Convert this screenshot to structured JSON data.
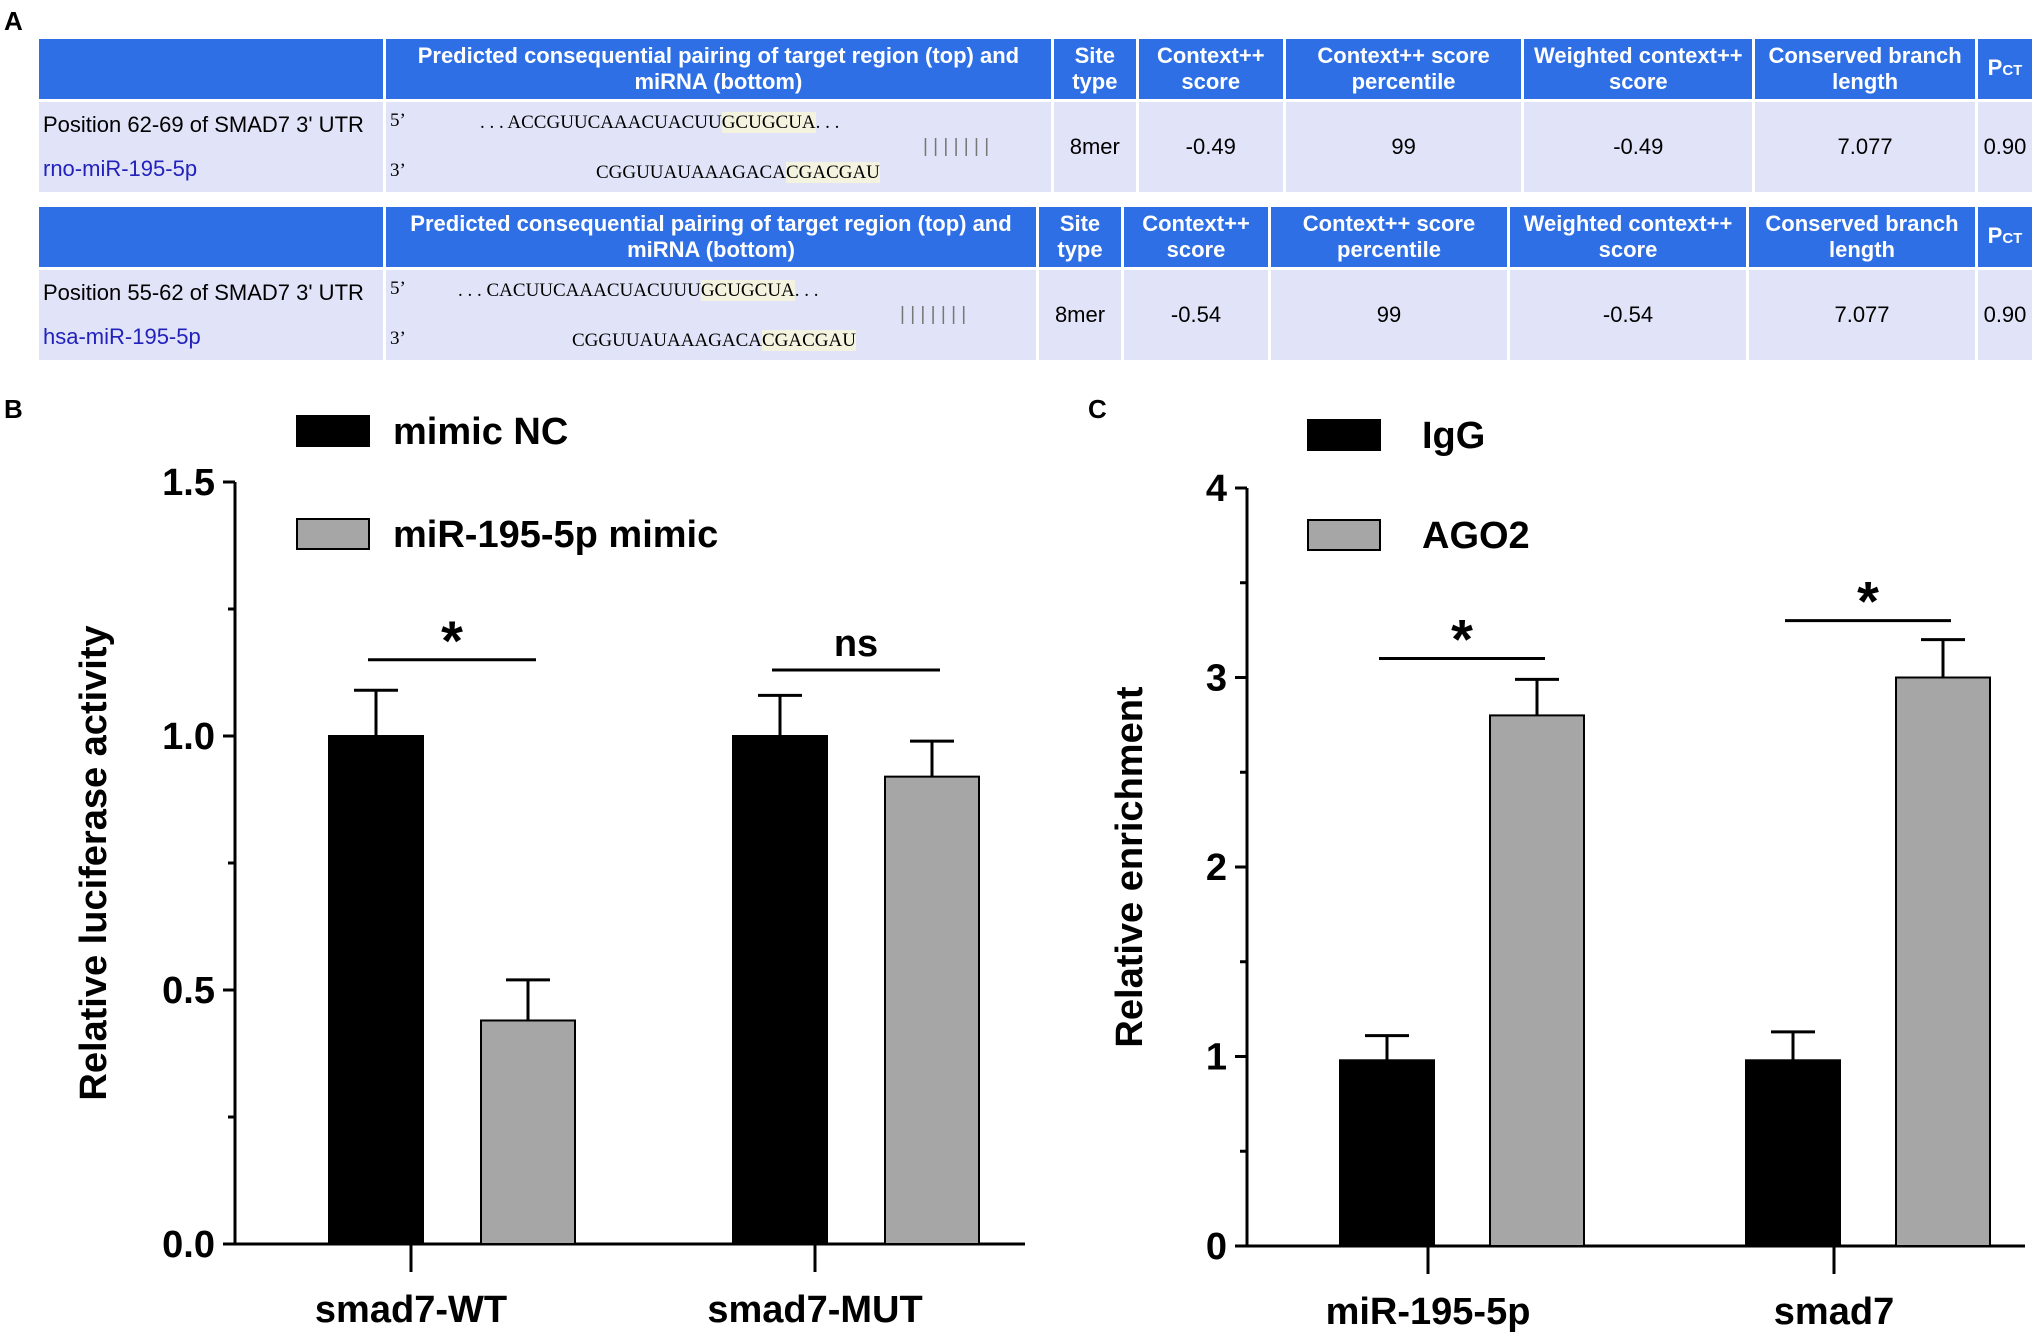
{
  "panels": {
    "a": "A",
    "b": "B",
    "c": "C"
  },
  "table": {
    "rows": [
      {
        "headers": {
          "blank": "",
          "pairing": "Predicted consequential pairing of target region (top) and miRNA (bottom)",
          "site_type": "Site type",
          "context_score": "Context++ score",
          "percentile": "Context++ score percentile",
          "weighted": "Weighted context++ score",
          "branch": "Conserved branch length",
          "pct_main": "P",
          "pct_sub": "CT"
        },
        "position": "Position 62-69 of SMAD7 3' UTR",
        "mirna": "rno-miR-195-5p",
        "five_prime": "5’",
        "three_prime": "3’",
        "target_pre": ". . . ACCGUUCAAACUACUU",
        "target_seed": "GCUGCUA",
        "target_post": ". . .",
        "bars": "| | | | | | |",
        "mirna_pre": "CGGUUAUAAAGACA",
        "mirna_seed": "CGACGAU",
        "site_type": "8mer",
        "context_score": "-0.49",
        "percentile": "99",
        "weighted": "-0.49",
        "branch": "7.077",
        "pct": "0.90"
      },
      {
        "headers": {
          "blank": "",
          "pairing": "Predicted consequential pairing of target region (top) and miRNA (bottom)",
          "site_type": "Site type",
          "context_score": "Context++ score",
          "percentile": "Context++ score percentile",
          "weighted": "Weighted context++ score",
          "branch": "Conserved branch length",
          "pct_main": "P",
          "pct_sub": "CT"
        },
        "position": "Position 55-62 of SMAD7 3' UTR",
        "mirna": "hsa-miR-195-5p",
        "five_prime": "5’",
        "three_prime": "3’",
        "target_pre": ". . . CACUUCAAACUACUUU",
        "target_seed": "GCUGCUA",
        "target_post": ". . .",
        "bars": "| | | | | | |",
        "mirna_pre": "CGGUUAUAAAGACA",
        "mirna_seed": "CGACGAU",
        "site_type": "8mer",
        "context_score": "-0.54",
        "percentile": "99",
        "weighted": "-0.54",
        "branch": "7.077",
        "pct": "0.90"
      }
    ]
  },
  "chart_data": [
    {
      "type": "bar",
      "panel": "B",
      "categories": [
        "smad7-WT",
        "smad7-MUT"
      ],
      "series": [
        {
          "name": "mimic NC",
          "color": "#000000",
          "values": [
            1.0,
            1.0
          ],
          "errors": [
            0.09,
            0.08
          ]
        },
        {
          "name": "miR-195-5p mimic",
          "color": "#a6a6a6",
          "values": [
            0.44,
            0.92
          ],
          "errors": [
            0.08,
            0.07
          ]
        }
      ],
      "ylabel": "Relative luciferase activity",
      "ylim": [
        0,
        1.5
      ],
      "yticks": [
        "0.0",
        "0.5",
        "1.0",
        "1.5"
      ],
      "significance": [
        {
          "label": "*",
          "y": 1.15
        },
        {
          "label": "ns",
          "y": 1.13
        }
      ],
      "legend_position": "top-left"
    },
    {
      "type": "bar",
      "panel": "C",
      "categories": [
        "miR-195-5p",
        "smad7"
      ],
      "series": [
        {
          "name": "IgG",
          "color": "#000000",
          "values": [
            0.98,
            0.98
          ],
          "errors": [
            0.13,
            0.15
          ]
        },
        {
          "name": "AGO2",
          "color": "#a6a6a6",
          "values": [
            2.8,
            3.0
          ],
          "errors": [
            0.19,
            0.2
          ]
        }
      ],
      "ylabel": "Relative enrichment",
      "ylim": [
        0,
        4
      ],
      "yticks": [
        "0",
        "1",
        "2",
        "3",
        "4"
      ],
      "significance": [
        {
          "label": "*",
          "y": 3.1
        },
        {
          "label": "*",
          "y": 3.3
        }
      ],
      "legend_position": "top-left"
    }
  ]
}
